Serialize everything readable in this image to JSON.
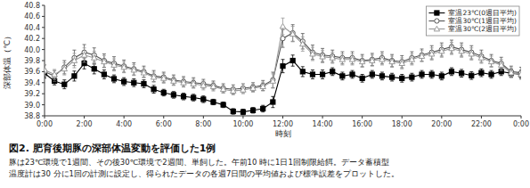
{
  "chart_data": {
    "type": "line",
    "title": "図2. 肥育後期豚の深部体温変動を評価した1例",
    "caption": [
      "豚は23℃環境で1週間、その後30℃環境で2週間、単飼した。午前10 時に1日1回制限給餌。データ蓄積型",
      "温度計は30 分に1回の計測に設定し、得られたデータの各週7日間の平均値および標準誤差をプロットした。"
    ],
    "y_label": "深部体温（℃）",
    "x_label": "時刻",
    "x": [
      0,
      1,
      2,
      3,
      4,
      5,
      6,
      7,
      8,
      9,
      10,
      11,
      12,
      13,
      14,
      15,
      16,
      17,
      18,
      19,
      20,
      21,
      22,
      23,
      24,
      25,
      26,
      27,
      28,
      29,
      30,
      31,
      32,
      33,
      34,
      35,
      36,
      37,
      38,
      39,
      40,
      41,
      42,
      43,
      44,
      45,
      46,
      47,
      48
    ],
    "xlim": [
      0,
      48
    ],
    "xticks": [
      {
        "value": 0,
        "label": "0:00"
      },
      {
        "value": 4,
        "label": "2:00"
      },
      {
        "value": 8,
        "label": "4:00"
      },
      {
        "value": 12,
        "label": "6:00"
      },
      {
        "value": 16,
        "label": "8:00"
      },
      {
        "value": 20,
        "label": "10:00"
      },
      {
        "value": 24,
        "label": "12:00"
      },
      {
        "value": 28,
        "label": "14:00"
      },
      {
        "value": 32,
        "label": "16:00"
      },
      {
        "value": 36,
        "label": "18:00"
      },
      {
        "value": 40,
        "label": "20:00"
      },
      {
        "value": 44,
        "label": "22:00"
      },
      {
        "value": 48,
        "label": "0:00"
      }
    ],
    "ylim": [
      38.8,
      40.8
    ],
    "yticks": [
      38.8,
      {
        "value": 39.0,
        "label": "39.0"
      },
      39.2,
      39.4,
      39.6,
      39.8,
      {
        "value": 40.0,
        "label": "40.0"
      },
      40.2,
      40.4,
      40.6,
      40.8
    ],
    "grid": false,
    "legend": "upper right",
    "series": [
      {
        "name": "室温23℃(0週目平均)",
        "color": "#000000",
        "marker": "square",
        "line_style": "solid",
        "values": [
          39.57,
          39.43,
          39.37,
          39.52,
          39.75,
          39.65,
          39.55,
          39.47,
          39.42,
          39.4,
          39.38,
          39.28,
          39.22,
          39.18,
          39.15,
          39.13,
          39.1,
          39.05,
          39.0,
          38.88,
          38.87,
          38.9,
          38.93,
          39.05,
          39.7,
          39.8,
          39.6,
          39.55,
          39.55,
          39.6,
          39.52,
          39.55,
          39.48,
          39.55,
          39.52,
          39.5,
          39.48,
          39.5,
          39.55,
          39.55,
          39.52,
          39.6,
          39.57,
          39.53,
          39.58,
          39.55,
          39.6,
          39.57,
          39.55
        ],
        "errors": [
          0.08,
          0.07,
          0.08,
          0.09,
          0.1,
          0.09,
          0.08,
          0.07,
          0.07,
          0.07,
          0.07,
          0.07,
          0.06,
          0.06,
          0.06,
          0.06,
          0.06,
          0.05,
          0.05,
          0.05,
          0.05,
          0.05,
          0.06,
          0.1,
          0.12,
          0.1,
          0.09,
          0.08,
          0.08,
          0.07,
          0.07,
          0.07,
          0.07,
          0.07,
          0.07,
          0.07,
          0.07,
          0.07,
          0.07,
          0.07,
          0.07,
          0.07,
          0.07,
          0.07,
          0.07,
          0.07,
          0.07,
          0.07,
          0.07
        ]
      },
      {
        "name": "室温30℃(1週目平均)",
        "color": "#555555",
        "marker": "circle",
        "line_style": "solid",
        "values": [
          39.6,
          39.52,
          39.68,
          39.85,
          39.95,
          39.9,
          39.8,
          39.75,
          39.7,
          39.65,
          39.6,
          39.52,
          39.5,
          39.45,
          39.42,
          39.4,
          39.38,
          39.35,
          39.3,
          39.28,
          39.3,
          39.32,
          39.35,
          39.45,
          40.2,
          40.3,
          40.15,
          39.95,
          39.9,
          39.88,
          39.85,
          39.85,
          39.8,
          39.82,
          39.85,
          39.8,
          39.78,
          39.85,
          39.9,
          39.95,
          40.0,
          40.05,
          40.0,
          39.95,
          39.88,
          39.8,
          39.75,
          39.6,
          39.58
        ],
        "errors": [
          0.12,
          0.1,
          0.12,
          0.14,
          0.14,
          0.13,
          0.12,
          0.12,
          0.11,
          0.11,
          0.1,
          0.1,
          0.09,
          0.09,
          0.09,
          0.09,
          0.08,
          0.08,
          0.08,
          0.08,
          0.08,
          0.08,
          0.09,
          0.14,
          0.16,
          0.15,
          0.14,
          0.13,
          0.12,
          0.11,
          0.11,
          0.11,
          0.11,
          0.11,
          0.11,
          0.11,
          0.11,
          0.11,
          0.11,
          0.12,
          0.12,
          0.12,
          0.12,
          0.12,
          0.11,
          0.11,
          0.11,
          0.1,
          0.1
        ]
      },
      {
        "name": "室温30℃(2週目平均)",
        "color": "#999999",
        "marker": "triangle",
        "line_style": "solid",
        "values": [
          39.63,
          39.55,
          39.65,
          39.8,
          39.9,
          39.85,
          39.78,
          39.72,
          39.68,
          39.63,
          39.58,
          39.5,
          39.48,
          39.43,
          39.4,
          39.38,
          39.35,
          39.33,
          39.28,
          39.25,
          39.27,
          39.3,
          39.33,
          39.43,
          40.42,
          40.28,
          40.1,
          39.92,
          39.87,
          39.85,
          39.82,
          39.82,
          39.78,
          39.8,
          39.82,
          39.78,
          39.75,
          39.82,
          39.88,
          39.92,
          39.97,
          40.02,
          39.97,
          39.92,
          39.85,
          39.78,
          39.72,
          39.58,
          39.55
        ],
        "errors": [
          0.1,
          0.09,
          0.11,
          0.13,
          0.13,
          0.12,
          0.11,
          0.11,
          0.1,
          0.1,
          0.09,
          0.09,
          0.09,
          0.08,
          0.08,
          0.08,
          0.08,
          0.08,
          0.07,
          0.07,
          0.07,
          0.07,
          0.08,
          0.13,
          0.15,
          0.14,
          0.13,
          0.12,
          0.11,
          0.1,
          0.1,
          0.1,
          0.1,
          0.1,
          0.1,
          0.1,
          0.1,
          0.1,
          0.1,
          0.11,
          0.11,
          0.11,
          0.11,
          0.11,
          0.1,
          0.1,
          0.1,
          0.09,
          0.09
        ]
      }
    ]
  }
}
